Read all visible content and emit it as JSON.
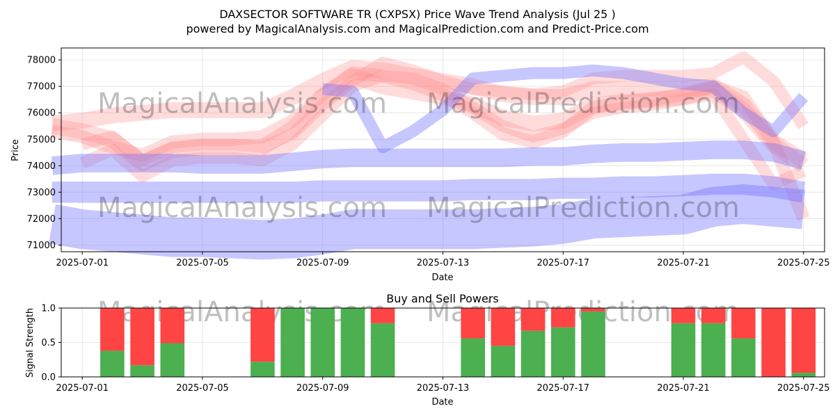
{
  "title_line1": "DAXSECTOR SOFTWARE TR (CXPSX) Price Wave Trend Analysis (Jul 25 )",
  "title_line2": "powered by MagicalAnalysis.com and MagicalPrediction.com and Predict-Price.com",
  "watermarks": [
    "MagicalAnalysis.com",
    "MagicalPrediction.com"
  ],
  "colors": {
    "buy": "#4caf50",
    "sell": "#ff4444",
    "bull_band": "#ff8080",
    "bear_band": "#6b6bff"
  },
  "chart_data": [
    {
      "type": "area",
      "ylabel": "Price",
      "xlabel": "Date",
      "x_ticks": [
        "2025-07-01",
        "2025-07-05",
        "2025-07-09",
        "2025-07-13",
        "2025-07-17",
        "2025-07-21",
        "2025-07-25"
      ],
      "y_ticks": [
        "71000",
        "72000",
        "73000",
        "74000",
        "75000",
        "76000",
        "77000",
        "78000"
      ],
      "xlim": [
        "2025-06-30",
        "2025-07-26"
      ],
      "ylim": [
        70750,
        78450
      ],
      "grid": true,
      "series": [
        {
          "color": "red",
          "x": [
            "2025-06-30",
            "2025-07-01",
            "2025-07-02",
            "2025-07-03",
            "2025-07-04",
            "2025-07-05",
            "2025-07-06",
            "2025-07-07",
            "2025-07-08",
            "2025-07-09",
            "2025-07-10",
            "2025-07-11",
            "2025-07-12",
            "2025-07-13",
            "2025-07-14",
            "2025-07-15",
            "2025-07-16",
            "2025-07-17",
            "2025-07-18",
            "2025-07-19",
            "2025-07-20",
            "2025-07-21",
            "2025-07-22",
            "2025-07-23",
            "2025-07-24",
            "2025-07-25"
          ],
          "y": [
            75500,
            75300,
            75000,
            74100,
            74600,
            74700,
            74700,
            74700,
            75400,
            76600,
            77400,
            77000,
            76800,
            76600,
            76300,
            75800,
            75600,
            75700,
            76300,
            76400,
            76500,
            76600,
            76900,
            76100,
            74800,
            74000
          ],
          "width": 600
        },
        {
          "color": "red",
          "x": [
            "2025-06-30",
            "2025-07-01",
            "2025-07-02",
            "2025-07-03",
            "2025-07-04",
            "2025-07-05",
            "2025-07-06",
            "2025-07-07",
            "2025-07-08",
            "2025-07-09",
            "2025-07-10",
            "2025-07-11",
            "2025-07-12",
            "2025-07-13",
            "2025-07-14",
            "2025-07-15",
            "2025-07-16",
            "2025-07-17",
            "2025-07-18",
            "2025-07-19",
            "2025-07-20",
            "2025-07-21",
            "2025-07-22",
            "2025-07-23",
            "2025-07-24",
            "2025-07-25"
          ],
          "y": [
            75600,
            75700,
            75900,
            76000,
            76100,
            76100,
            76100,
            76100,
            76600,
            77200,
            77700,
            77600,
            77400,
            77200,
            77000,
            76700,
            76600,
            76600,
            76900,
            76900,
            76900,
            76900,
            77000,
            76300,
            74900,
            74200
          ],
          "width": 600
        },
        {
          "color": "red",
          "x": [
            "2025-06-30",
            "2025-07-01",
            "2025-07-02",
            "2025-07-03",
            "2025-07-04",
            "2025-07-05",
            "2025-07-06",
            "2025-07-07",
            "2025-07-08",
            "2025-07-09",
            "2025-07-10",
            "2025-07-11",
            "2025-07-12",
            "2025-07-13",
            "2025-07-14",
            "2025-07-15",
            "2025-07-16",
            "2025-07-17",
            "2025-07-18",
            "2025-07-19",
            "2025-07-20",
            "2025-07-21",
            "2025-07-22",
            "2025-07-23",
            "2025-07-24",
            "2025-07-25"
          ],
          "y": [
            75300,
            75100,
            74700,
            74400,
            74900,
            75000,
            75000,
            75100,
            75700,
            76700,
            77500,
            77400,
            77100,
            76700,
            76000,
            75200,
            74900,
            75300,
            76200,
            76400,
            76500,
            76700,
            77000,
            76600,
            74900,
            72000
          ],
          "width": 500
        },
        {
          "color": "red",
          "x": [
            "2025-07-01",
            "2025-07-02",
            "2025-07-03",
            "2025-07-04",
            "2025-07-05",
            "2025-07-06",
            "2025-07-07",
            "2025-07-08",
            "2025-07-09",
            "2025-07-10",
            "2025-07-11",
            "2025-07-12",
            "2025-07-13",
            "2025-07-14",
            "2025-07-15",
            "2025-07-16",
            "2025-07-17",
            "2025-07-18",
            "2025-07-19",
            "2025-07-20",
            "2025-07-21",
            "2025-07-22",
            "2025-07-23",
            "2025-07-24",
            "2025-07-25"
          ],
          "y": [
            74100,
            74600,
            73600,
            74200,
            74300,
            74300,
            74200,
            74800,
            75900,
            77000,
            77400,
            77300,
            76900,
            76200,
            75500,
            75100,
            75400,
            76000,
            76200,
            76300,
            76500,
            76700,
            75000,
            73300,
            73800
          ],
          "width": 450
        },
        {
          "color": "red",
          "x": [
            "2025-07-01",
            "2025-07-02",
            "2025-07-03",
            "2025-07-04",
            "2025-07-05",
            "2025-07-06",
            "2025-07-07",
            "2025-07-08",
            "2025-07-09",
            "2025-07-10",
            "2025-07-11",
            "2025-07-12",
            "2025-07-13",
            "2025-07-14",
            "2025-07-15",
            "2025-07-16",
            "2025-07-17",
            "2025-07-18",
            "2025-07-19",
            "2025-07-20",
            "2025-07-21",
            "2025-07-22",
            "2025-07-23",
            "2025-07-24",
            "2025-07-25"
          ],
          "y": [
            74800,
            75100,
            74200,
            74700,
            74800,
            74800,
            74700,
            75200,
            76300,
            77200,
            77900,
            77600,
            77200,
            76900,
            76800,
            76700,
            76800,
            77300,
            77400,
            77400,
            77400,
            77500,
            78100,
            77200,
            75500
          ],
          "width": 450
        },
        {
          "color": "blue",
          "x": [
            "2025-06-30",
            "2025-07-01",
            "2025-07-02",
            "2025-07-03",
            "2025-07-04",
            "2025-07-05",
            "2025-07-06",
            "2025-07-07",
            "2025-07-08",
            "2025-07-09",
            "2025-07-10",
            "2025-07-11",
            "2025-07-12",
            "2025-07-13",
            "2025-07-14",
            "2025-07-15",
            "2025-07-16",
            "2025-07-17",
            "2025-07-18",
            "2025-07-19",
            "2025-07-20",
            "2025-07-21",
            "2025-07-22",
            "2025-07-23",
            "2025-07-24",
            "2025-07-25"
          ],
          "y": [
            74000,
            74100,
            74100,
            74100,
            74100,
            74050,
            74050,
            74050,
            74150,
            74250,
            74300,
            74300,
            74300,
            74300,
            74300,
            74300,
            74350,
            74350,
            74450,
            74500,
            74500,
            74550,
            74600,
            74600,
            74500,
            74200
          ],
          "width": 700
        },
        {
          "color": "blue",
          "x": [
            "2025-06-30",
            "2025-07-01",
            "2025-07-02",
            "2025-07-03",
            "2025-07-04",
            "2025-07-05",
            "2025-07-06",
            "2025-07-07",
            "2025-07-08",
            "2025-07-09",
            "2025-07-10",
            "2025-07-11",
            "2025-07-12",
            "2025-07-13",
            "2025-07-14",
            "2025-07-15",
            "2025-07-16",
            "2025-07-17",
            "2025-07-18",
            "2025-07-19",
            "2025-07-20",
            "2025-07-21",
            "2025-07-22",
            "2025-07-23",
            "2025-07-24",
            "2025-07-25"
          ],
          "y": [
            73000,
            73000,
            73000,
            73000,
            73000,
            73000,
            73000,
            73000,
            73000,
            73050,
            73050,
            73050,
            73050,
            73050,
            73100,
            73100,
            73100,
            73150,
            73150,
            73200,
            73200,
            73250,
            73300,
            73300,
            73200,
            73000
          ],
          "width": 800
        },
        {
          "color": "blue",
          "x": [
            "2025-06-30",
            "2025-07-01",
            "2025-07-02",
            "2025-07-03",
            "2025-07-04",
            "2025-07-05",
            "2025-07-06",
            "2025-07-07",
            "2025-07-08",
            "2025-07-09",
            "2025-07-10",
            "2025-07-11",
            "2025-07-12",
            "2025-07-13",
            "2025-07-14",
            "2025-07-15",
            "2025-07-16",
            "2025-07-17",
            "2025-07-18",
            "2025-07-19",
            "2025-07-20",
            "2025-07-21",
            "2025-07-22",
            "2025-07-23",
            "2025-07-24",
            "2025-07-25"
          ],
          "y": [
            71800,
            71600,
            71500,
            71400,
            71300,
            71300,
            71250,
            71200,
            71250,
            71400,
            71600,
            71600,
            71600,
            71600,
            71600,
            71650,
            71700,
            71800,
            72000,
            72050,
            72100,
            72150,
            72450,
            72550,
            72450,
            72350
          ],
          "width": 1500
        },
        {
          "color": "blue",
          "x": [
            "2025-07-09",
            "2025-07-10",
            "2025-07-11",
            "2025-07-12",
            "2025-07-13",
            "2025-07-14",
            "2025-07-15",
            "2025-07-16",
            "2025-07-17",
            "2025-07-18",
            "2025-07-19",
            "2025-07-20",
            "2025-07-21",
            "2025-07-22",
            "2025-07-23",
            "2025-07-24",
            "2025-07-25"
          ],
          "y": [
            76900,
            76800,
            74700,
            75300,
            76100,
            77300,
            77400,
            77500,
            77500,
            77600,
            77500,
            77300,
            77100,
            77000,
            76000,
            75300,
            76600
          ],
          "width": 450
        }
      ]
    },
    {
      "type": "bar",
      "title": "Buy and Sell Powers",
      "ylabel": "Signal Strength",
      "xlabel": "Date",
      "x_ticks": [
        "2025-07-01",
        "2025-07-05",
        "2025-07-09",
        "2025-07-13",
        "2025-07-17",
        "2025-07-21",
        "2025-07-25"
      ],
      "y_ticks": [
        "0.0",
        "0.5",
        "1.0"
      ],
      "xlim": [
        "2025-06-30",
        "2025-07-26"
      ],
      "ylim": [
        0,
        1
      ],
      "dates": [
        "2025-07-01",
        "2025-07-02",
        "2025-07-03",
        "2025-07-06",
        "2025-07-07",
        "2025-07-08",
        "2025-07-09",
        "2025-07-10",
        "2025-07-13",
        "2025-07-14",
        "2025-07-15",
        "2025-07-16",
        "2025-07-17",
        "2025-07-20",
        "2025-07-21",
        "2025-07-22",
        "2025-07-23",
        "2025-07-24"
      ],
      "series": [
        {
          "name": "buy",
          "values": [
            0.38,
            0.17,
            0.49,
            0.22,
            1.0,
            1.0,
            1.0,
            0.78,
            0.56,
            0.45,
            0.67,
            0.72,
            0.95,
            0.78,
            0.78,
            0.56,
            0.0,
            0.06
          ]
        },
        {
          "name": "sell",
          "values": [
            0.62,
            0.83,
            0.51,
            0.78,
            0.0,
            0.0,
            0.0,
            0.22,
            0.44,
            0.55,
            0.33,
            0.28,
            0.05,
            0.22,
            0.22,
            0.44,
            1.0,
            0.94
          ]
        }
      ]
    }
  ]
}
